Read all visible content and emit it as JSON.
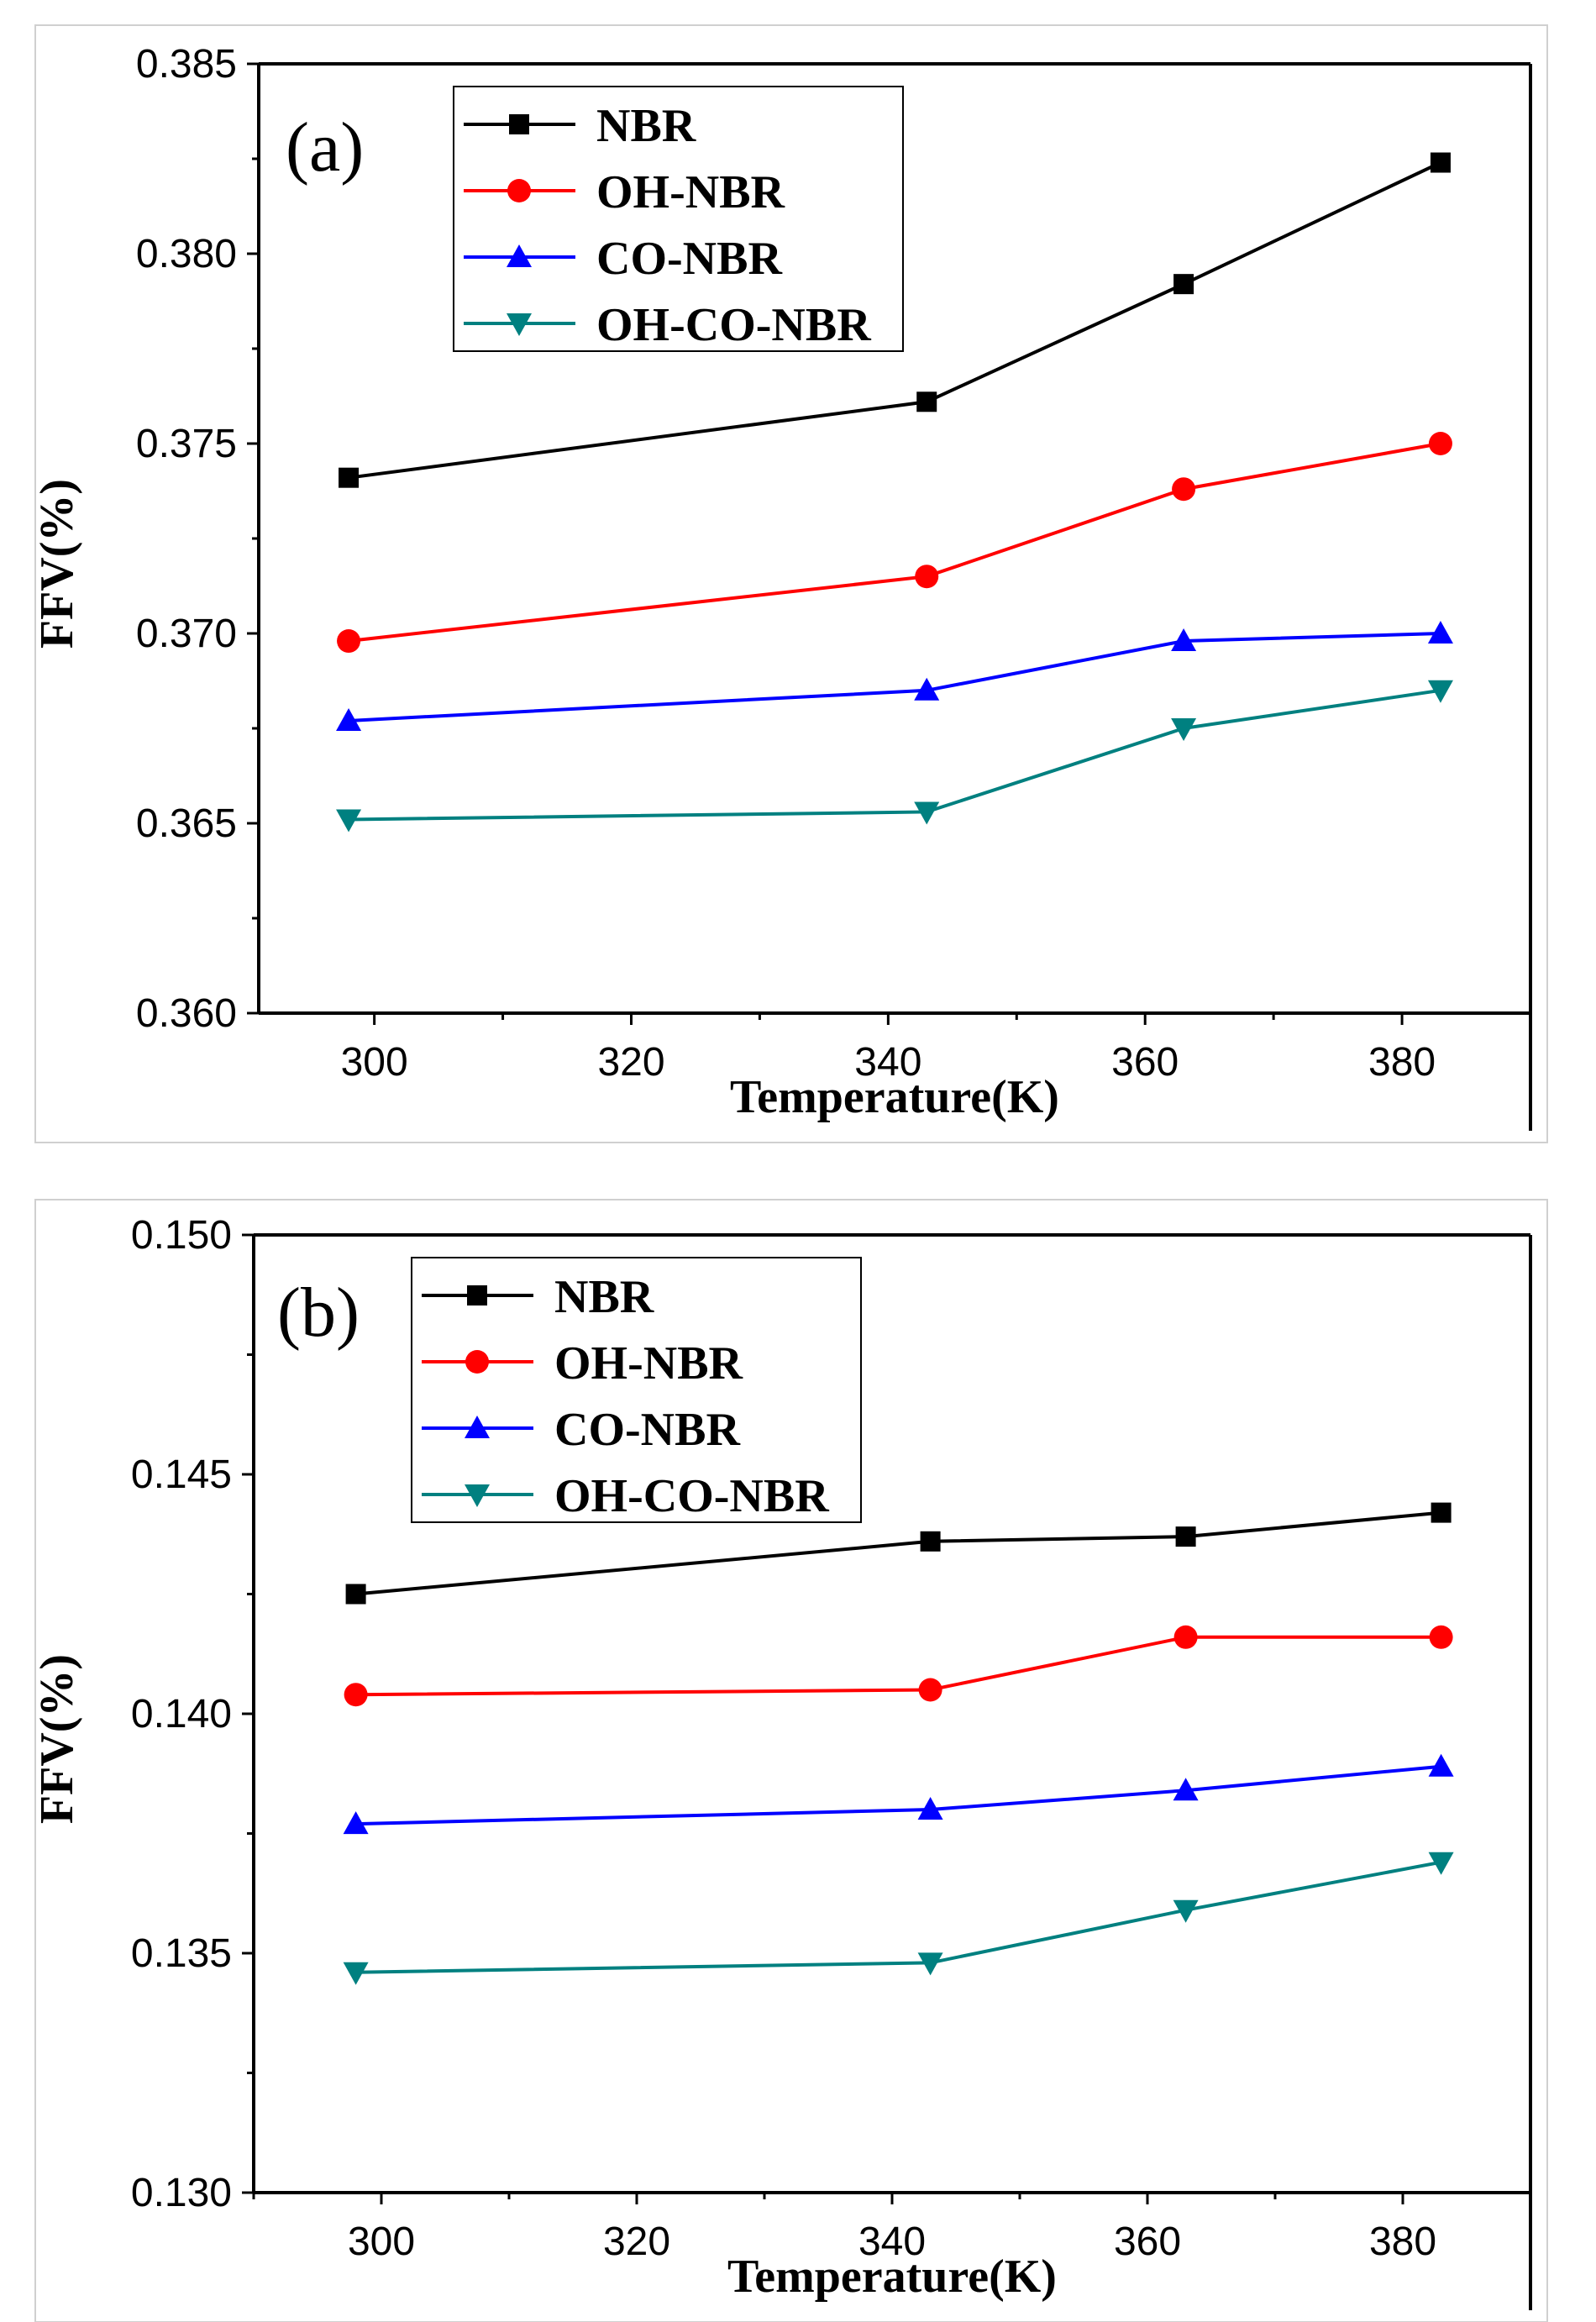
{
  "chart_data": [
    {
      "type": "line",
      "panel_label": "(a)",
      "xlabel": "Temperature(K)",
      "ylabel": "FFV(%)",
      "xlim": [
        291,
        390
      ],
      "ylim": [
        0.36,
        0.385
      ],
      "xticks": [
        300,
        320,
        340,
        360,
        380
      ],
      "yticks": [
        0.36,
        0.365,
        0.37,
        0.375,
        0.38,
        0.385
      ],
      "ytick_labels": [
        "0.360",
        "0.365",
        "0.370",
        "0.375",
        "0.380",
        "0.385"
      ],
      "x": [
        298,
        343,
        363,
        383
      ],
      "legend_position": "top-left",
      "series": [
        {
          "name": "NBR",
          "color": "#000000",
          "marker": "square",
          "values": [
            0.3741,
            0.3761,
            0.3792,
            0.3824
          ]
        },
        {
          "name": "OH-NBR",
          "color": "#ff0000",
          "marker": "circle",
          "values": [
            0.3698,
            0.3715,
            0.3738,
            0.375
          ]
        },
        {
          "name": "CO-NBR",
          "color": "#0000ff",
          "marker": "triangle-up",
          "values": [
            0.3677,
            0.3685,
            0.3698,
            0.37
          ]
        },
        {
          "name": "OH-CO-NBR",
          "color": "#008080",
          "marker": "triangle-down",
          "values": [
            0.3651,
            0.3653,
            0.3675,
            0.3685
          ]
        }
      ]
    },
    {
      "type": "line",
      "panel_label": "(b)",
      "xlabel": "Temperature(K)",
      "ylabel": "FFV(%)",
      "xlim": [
        290,
        390
      ],
      "ylim": [
        0.13,
        0.15
      ],
      "xticks": [
        300,
        320,
        340,
        360,
        380
      ],
      "yticks": [
        0.13,
        0.135,
        0.14,
        0.145,
        0.15
      ],
      "ytick_labels": [
        "0.130",
        "0.135",
        "0.140",
        "0.145",
        "0.150"
      ],
      "x": [
        298,
        343,
        363,
        383
      ],
      "legend_position": "top-left",
      "series": [
        {
          "name": "NBR",
          "color": "#000000",
          "marker": "square",
          "values": [
            0.1425,
            0.1436,
            0.1437,
            0.1442
          ]
        },
        {
          "name": "OH-NBR",
          "color": "#ff0000",
          "marker": "circle",
          "values": [
            0.1404,
            0.1405,
            0.1416,
            0.1416
          ]
        },
        {
          "name": "CO-NBR",
          "color": "#0000ff",
          "marker": "triangle-up",
          "values": [
            0.1377,
            0.138,
            0.1384,
            0.1389
          ]
        },
        {
          "name": "OH-CO-NBR",
          "color": "#008080",
          "marker": "triangle-down",
          "values": [
            0.1346,
            0.1348,
            0.1359,
            0.1369
          ]
        }
      ]
    }
  ]
}
